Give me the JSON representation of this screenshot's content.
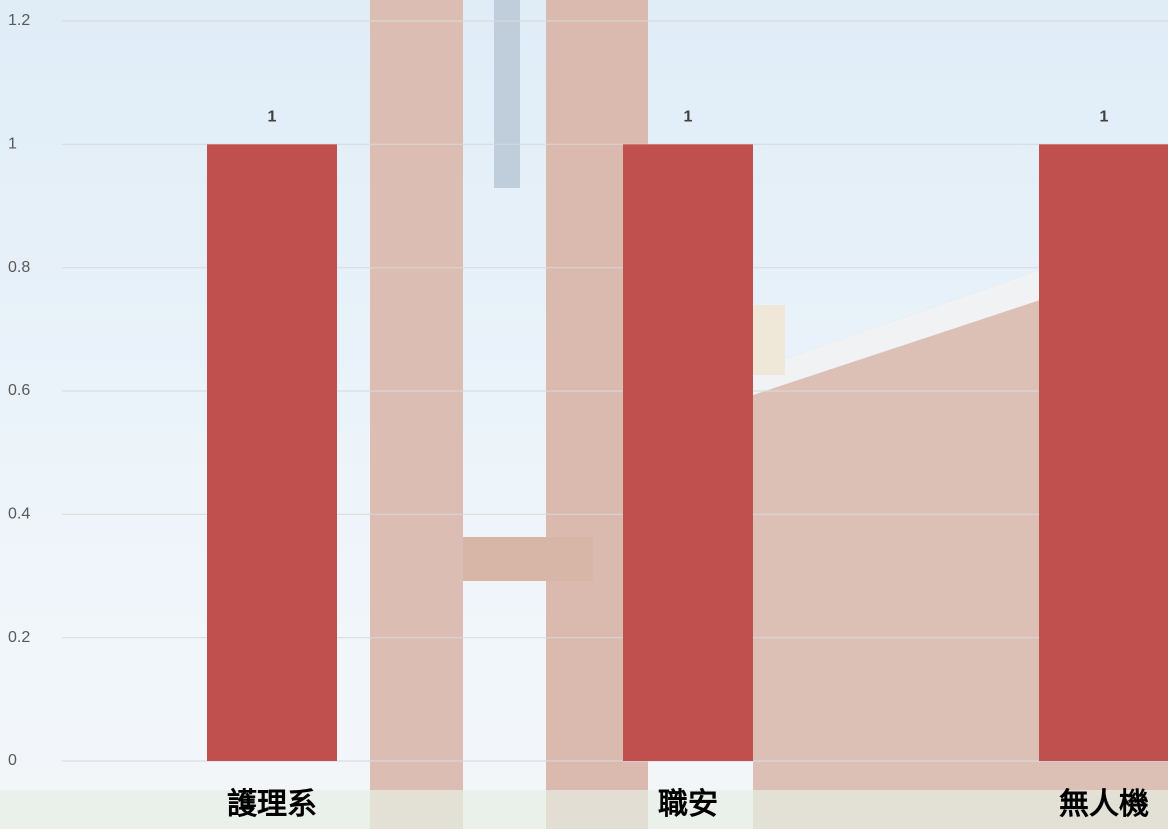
{
  "chart_data": {
    "type": "bar",
    "categories": [
      "護理系",
      "職安",
      "無人機"
    ],
    "values": [
      1,
      1,
      1
    ],
    "color": "#c0504d",
    "ylim": [
      0,
      1.2
    ],
    "yticks": [
      0,
      0.2,
      0.4,
      0.6,
      0.8,
      1,
      1.2
    ],
    "grid": true
  }
}
